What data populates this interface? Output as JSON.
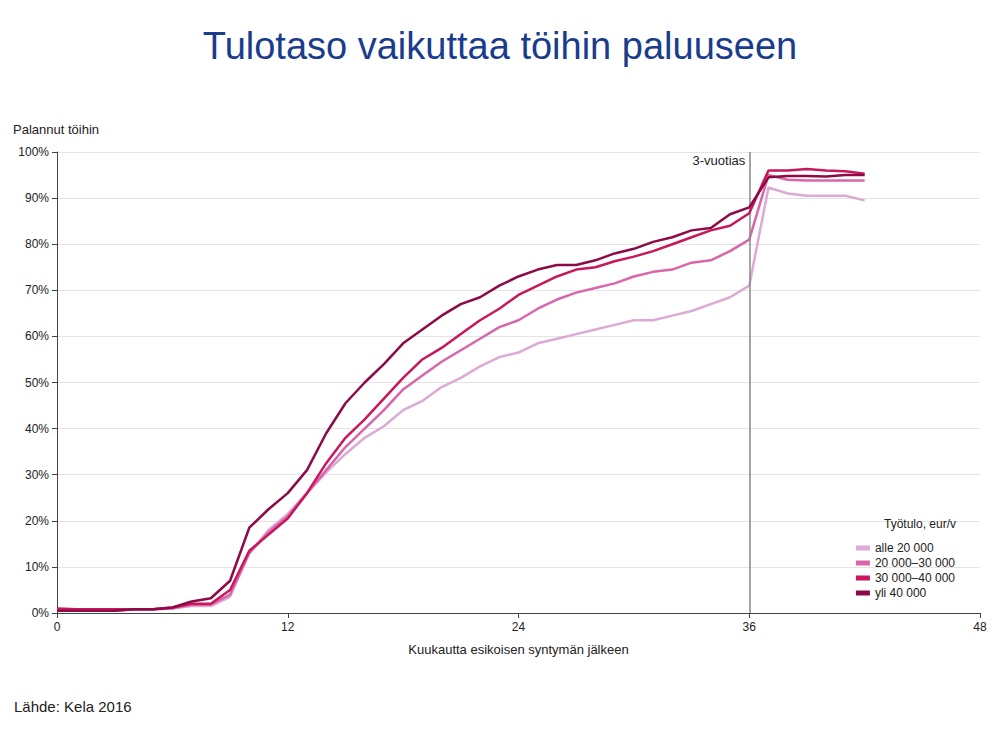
{
  "chart_data": {
    "type": "line",
    "title": "Tulotaso vaikuttaa töihin paluuseen",
    "x_label": "Kuukautta esikoisen syntymän jälkeen",
    "y_label": "Palannut töihin",
    "source": "Lähde: Kela 2016",
    "legend_title": "Työtulo, eur/v",
    "legend": "lower right",
    "grid": true,
    "annotation": {
      "x": 36,
      "label": "3-vuotias"
    },
    "x": [
      0,
      1,
      2,
      3,
      4,
      5,
      6,
      7,
      8,
      9,
      10,
      11,
      12,
      13,
      14,
      15,
      16,
      17,
      18,
      19,
      20,
      21,
      22,
      23,
      24,
      25,
      26,
      27,
      28,
      29,
      30,
      31,
      32,
      33,
      34,
      35,
      36,
      37,
      38,
      39,
      40,
      41,
      42
    ],
    "xlim": [
      0,
      48
    ],
    "xticks": [
      0,
      12,
      24,
      36,
      48
    ],
    "ylim": [
      0,
      100
    ],
    "yticks": [
      {
        "value": 0,
        "label": "0%"
      },
      {
        "value": 10,
        "label": "10%"
      },
      {
        "value": 20,
        "label": "20%"
      },
      {
        "value": 30,
        "label": "30%"
      },
      {
        "value": 40,
        "label": "40%"
      },
      {
        "value": 50,
        "label": "50%"
      },
      {
        "value": 60,
        "label": "60%"
      },
      {
        "value": 70,
        "label": "70%"
      },
      {
        "value": 80,
        "label": "80%"
      },
      {
        "value": 90,
        "label": "90%"
      },
      {
        "value": 100,
        "label": "100%"
      }
    ],
    "series": [
      {
        "name": "alle 20 000",
        "color": "#dcaad2",
        "values": [
          0.5,
          0.5,
          0.5,
          0.5,
          0.8,
          0.8,
          1,
          1.5,
          1.5,
          3.5,
          13,
          18,
          21.5,
          26,
          30.5,
          34.5,
          38,
          40.5,
          44,
          46,
          49,
          51,
          53.5,
          55.5,
          56.5,
          58.5,
          59.5,
          60.5,
          61.5,
          62.5,
          63.5,
          63.5,
          64.5,
          65.5,
          67,
          68.5,
          71,
          92.3,
          91,
          90.5,
          90.5,
          90.5,
          89.5
        ]
      },
      {
        "name": "20 000–30 000",
        "color": "#d966a8",
        "values": [
          0.5,
          0.5,
          0.5,
          0.5,
          0.8,
          0.8,
          1,
          1.8,
          1.8,
          4,
          13,
          17.5,
          21,
          26,
          31,
          36,
          40,
          44,
          48.5,
          51.5,
          54.5,
          57,
          59.5,
          62,
          63.5,
          66,
          68,
          69.5,
          70.5,
          71.5,
          73,
          74,
          74.5,
          76,
          76.5,
          78.5,
          81,
          95,
          94,
          93.8,
          93.8,
          93.8,
          93.8
        ]
      },
      {
        "name": "30 000–40 000",
        "color": "#c8175a",
        "values": [
          1,
          0.8,
          0.8,
          0.8,
          0.8,
          0.8,
          1.2,
          2,
          2,
          5,
          13.5,
          17,
          20.5,
          26,
          32.5,
          38,
          42,
          46.5,
          51,
          55,
          57.5,
          60.5,
          63.5,
          66,
          69,
          71,
          73,
          74.5,
          75,
          76.3,
          77.3,
          78.5,
          80,
          81.5,
          83,
          84,
          86.7,
          96,
          96,
          96.3,
          96,
          95.8,
          95.3
        ]
      },
      {
        "name": "yli 40 000",
        "color": "#8c0a46",
        "values": [
          0.5,
          0.5,
          0.5,
          0.5,
          0.8,
          0.8,
          1.2,
          2.5,
          3.2,
          7,
          18.5,
          22.5,
          26,
          31,
          39,
          45.5,
          50,
          54,
          58.5,
          61.5,
          64.5,
          67,
          68.5,
          71,
          73,
          74.5,
          75.5,
          75.5,
          76.5,
          78,
          79,
          80.5,
          81.5,
          83,
          83.5,
          86.5,
          88,
          94.5,
          94.8,
          94.8,
          94.7,
          95,
          95
        ]
      }
    ]
  }
}
